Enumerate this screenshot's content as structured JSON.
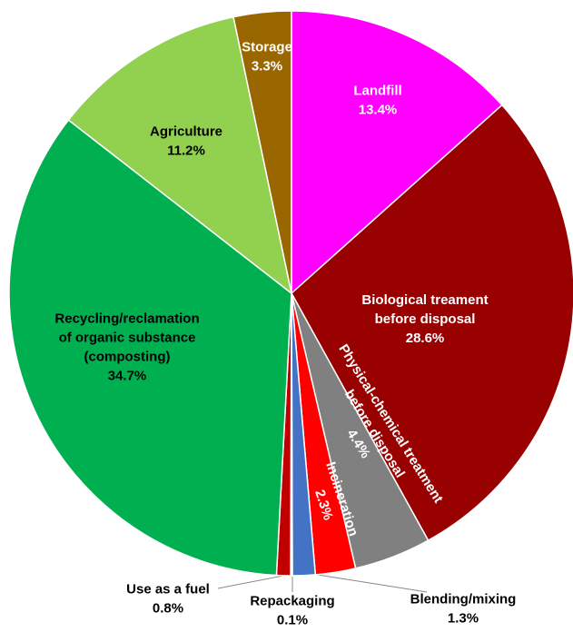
{
  "chart_data": {
    "type": "pie",
    "categories": [
      "Landfill",
      "Biological treament\nbefore disposal",
      "Physical-chemical treatment\nbefore disposal",
      "Incineration",
      "Blending/mixing",
      "Repackaging",
      "Use as a fuel",
      "Recycling/reclamation\nof organic substance\n(composting)",
      "Agriculture",
      "Storage"
    ],
    "values": [
      13.4,
      28.6,
      4.4,
      2.3,
      1.3,
      0.1,
      0.8,
      34.7,
      11.2,
      3.3
    ],
    "value_labels": [
      "13.4%",
      "28.6%",
      "4.4%",
      "2.3%",
      "1.3%",
      "0.1%",
      "0.8%",
      "34.7%",
      "11.2%",
      "3.3%"
    ],
    "colors": [
      "#ff00ff",
      "#990000",
      "#808080",
      "#ff0000",
      "#4472c4",
      "#ffffff",
      "#c00000",
      "#00b050",
      "#92d050",
      "#996600"
    ]
  }
}
